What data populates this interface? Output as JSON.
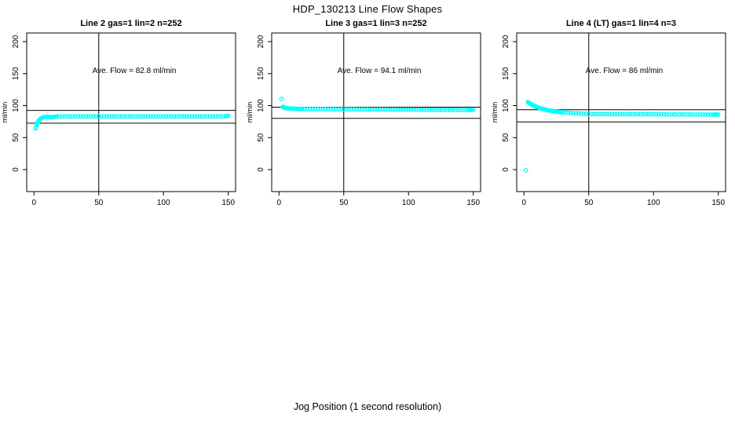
{
  "figure": {
    "title": "HDP_130213  Line Flow Shapes",
    "xlabel": "Jog Position (1 second resolution)",
    "background": "#ffffff",
    "axis_color": "#000000",
    "marker_color": "#00FFFF"
  },
  "chart_data": [
    {
      "type": "scatter",
      "title": "Line 2 gas=1 lin=2 n=252",
      "annotation": "Ave. Flow =  82.8  ml/min",
      "ave_flow_ml_min": 82.8,
      "n": 252,
      "ylabel": "ml/min",
      "xticks": [
        "0",
        "50",
        "100",
        "150"
      ],
      "yticks": [
        "0",
        "50",
        "100",
        "150",
        "200"
      ],
      "xlim": [
        0,
        155
      ],
      "ylim": [
        0,
        200
      ],
      "grid": false,
      "vline_x": 50,
      "hlines": [
        92.5,
        72.5
      ],
      "points": [
        [
          1.3,
          64.5
        ],
        [
          1.7,
          66
        ],
        [
          2,
          69.5
        ],
        [
          2.3,
          71
        ],
        [
          2.6,
          72.5
        ],
        [
          3,
          74
        ],
        [
          3.4,
          75.5
        ],
        [
          3.8,
          76.8
        ],
        [
          4.2,
          77.8
        ],
        [
          4.6,
          78.6
        ],
        [
          5,
          79.3
        ],
        [
          5.5,
          80
        ],
        [
          6,
          80.6
        ],
        [
          6.5,
          81
        ],
        [
          7,
          81.4
        ],
        [
          7.5,
          81.7
        ],
        [
          8,
          82
        ],
        [
          9,
          82.3
        ],
        [
          10,
          82.5
        ],
        [
          11,
          82.5
        ],
        [
          12,
          82.3
        ],
        [
          13,
          81.7
        ],
        [
          14,
          82
        ],
        [
          15,
          82.4
        ],
        [
          16,
          82.7
        ],
        [
          17,
          82.9
        ],
        [
          18,
          83
        ],
        [
          20,
          83.2
        ],
        [
          22,
          83
        ],
        [
          24,
          83.3
        ],
        [
          26,
          83.1
        ],
        [
          28,
          83
        ],
        [
          30,
          83.2
        ],
        [
          32,
          83.1
        ],
        [
          34,
          83.3
        ],
        [
          36,
          83
        ],
        [
          38,
          83.2
        ],
        [
          40,
          83.1
        ],
        [
          42,
          83
        ],
        [
          44,
          83.2
        ],
        [
          46,
          83.3
        ],
        [
          48,
          83.1
        ],
        [
          50,
          83
        ],
        [
          52,
          83.2
        ],
        [
          54,
          83.1
        ],
        [
          56,
          83.3
        ],
        [
          58,
          83
        ],
        [
          60,
          83.2
        ],
        [
          62,
          83.1
        ],
        [
          64,
          83
        ],
        [
          66,
          83.2
        ],
        [
          68,
          83.3
        ],
        [
          70,
          83.1
        ],
        [
          72,
          83
        ],
        [
          74,
          83.2
        ],
        [
          76,
          83.1
        ],
        [
          78,
          83.3
        ],
        [
          80,
          83
        ],
        [
          82,
          83.2
        ],
        [
          84,
          83.1
        ],
        [
          86,
          83
        ],
        [
          88,
          83.2
        ],
        [
          90,
          83.3
        ],
        [
          92,
          83.1
        ],
        [
          94,
          83
        ],
        [
          96,
          83.2
        ],
        [
          98,
          83.1
        ],
        [
          100,
          83.3
        ],
        [
          102,
          83
        ],
        [
          104,
          83.2
        ],
        [
          106,
          83.1
        ],
        [
          108,
          83
        ],
        [
          110,
          83.2
        ],
        [
          112,
          83.3
        ],
        [
          114,
          83.1
        ],
        [
          116,
          83
        ],
        [
          118,
          83.2
        ],
        [
          120,
          83.1
        ],
        [
          122,
          83.3
        ],
        [
          124,
          83
        ],
        [
          126,
          83.2
        ],
        [
          128,
          83.1
        ],
        [
          130,
          83
        ],
        [
          132,
          83.2
        ],
        [
          134,
          83.3
        ],
        [
          136,
          83.1
        ],
        [
          138,
          83
        ],
        [
          140,
          83.2
        ],
        [
          142,
          83.1
        ],
        [
          144,
          83.3
        ],
        [
          146,
          83.2
        ],
        [
          148,
          83.5
        ],
        [
          149,
          83.9
        ],
        [
          150,
          84.3
        ]
      ]
    },
    {
      "type": "scatter",
      "title": "Line 3 gas=1 lin=3 n=252",
      "annotation": "Ave. Flow =  94.1  ml/min",
      "ave_flow_ml_min": 94.1,
      "n": 252,
      "ylabel": "ml/min",
      "xticks": [
        "0",
        "50",
        "100",
        "150"
      ],
      "yticks": [
        "0",
        "50",
        "100",
        "150",
        "200"
      ],
      "xlim": [
        0,
        155
      ],
      "ylim": [
        0,
        200
      ],
      "grid": false,
      "vline_x": 50,
      "hlines": [
        97.5,
        80
      ],
      "points": [
        [
          2,
          110.5
        ],
        [
          3,
          98.2
        ],
        [
          3.4,
          97.6
        ],
        [
          3.8,
          97.2
        ],
        [
          4.2,
          96.8
        ],
        [
          4.6,
          96.5
        ],
        [
          5,
          96.3
        ],
        [
          5.5,
          96.1
        ],
        [
          6,
          95.9
        ],
        [
          6.5,
          95.8
        ],
        [
          7,
          95.7
        ],
        [
          8,
          95.5
        ],
        [
          9,
          95.4
        ],
        [
          10,
          95.3
        ],
        [
          11,
          95.2
        ],
        [
          12,
          95.1
        ],
        [
          13,
          95
        ],
        [
          14,
          95
        ],
        [
          15,
          94.9
        ],
        [
          16,
          94.9
        ],
        [
          17,
          94.8
        ],
        [
          18,
          94.8
        ],
        [
          20,
          94.8
        ],
        [
          22,
          94.7
        ],
        [
          24,
          94.7
        ],
        [
          26,
          94.7
        ],
        [
          28,
          94.7
        ],
        [
          30,
          94.6
        ],
        [
          32,
          94.6
        ],
        [
          34,
          94.6
        ],
        [
          36,
          94.6
        ],
        [
          38,
          94.5
        ],
        [
          40,
          94.5
        ],
        [
          42,
          94.5
        ],
        [
          44,
          94.5
        ],
        [
          46,
          94.4
        ],
        [
          48,
          94.4
        ],
        [
          50,
          94.4
        ],
        [
          52,
          94.4
        ],
        [
          54,
          94.3
        ],
        [
          56,
          94.3
        ],
        [
          58,
          94.3
        ],
        [
          60,
          94.3
        ],
        [
          62,
          94.2
        ],
        [
          64,
          94.2
        ],
        [
          66,
          94.2
        ],
        [
          68,
          94.2
        ],
        [
          70,
          94.1
        ],
        [
          72,
          94.1
        ],
        [
          74,
          94.1
        ],
        [
          76,
          94.1
        ],
        [
          78,
          94
        ],
        [
          80,
          94
        ],
        [
          82,
          94
        ],
        [
          84,
          94
        ],
        [
          86,
          93.9
        ],
        [
          88,
          93.9
        ],
        [
          90,
          93.9
        ],
        [
          92,
          93.9
        ],
        [
          94,
          93.8
        ],
        [
          96,
          93.8
        ],
        [
          98,
          93.8
        ],
        [
          100,
          93.8
        ],
        [
          102,
          93.7
        ],
        [
          104,
          93.7
        ],
        [
          106,
          93.7
        ],
        [
          108,
          93.7
        ],
        [
          110,
          93.6
        ],
        [
          112,
          93.6
        ],
        [
          114,
          93.6
        ],
        [
          116,
          93.6
        ],
        [
          118,
          93.5
        ],
        [
          120,
          93.5
        ],
        [
          122,
          93.5
        ],
        [
          124,
          93.5
        ],
        [
          126,
          93.4
        ],
        [
          128,
          93.4
        ],
        [
          130,
          93.4
        ],
        [
          132,
          93.4
        ],
        [
          134,
          93.3
        ],
        [
          136,
          93.3
        ],
        [
          138,
          93.3
        ],
        [
          140,
          93.3
        ],
        [
          142,
          93.2
        ],
        [
          144,
          93.2
        ],
        [
          146,
          92.9
        ],
        [
          147,
          93.7
        ],
        [
          148,
          93.1
        ],
        [
          149,
          93.9
        ],
        [
          150,
          93.3
        ]
      ]
    },
    {
      "type": "scatter",
      "title": "Line 4 (LT) gas=1 lin=4 n=3",
      "annotation": "Ave. Flow =  86  ml/min",
      "ave_flow_ml_min": 86,
      "n": 3,
      "ylabel": "ml/min",
      "xticks": [
        "0",
        "50",
        "100",
        "150"
      ],
      "yticks": [
        "0",
        "50",
        "100",
        "150",
        "200"
      ],
      "xlim": [
        0,
        155
      ],
      "ylim": [
        0,
        200
      ],
      "grid": false,
      "vline_x": 50,
      "hlines": [
        93.5,
        74.5
      ],
      "points": [
        [
          1.5,
          -1
        ],
        [
          3,
          105.5
        ],
        [
          3.5,
          104.8
        ],
        [
          4,
          104.1
        ],
        [
          4.5,
          103.4
        ],
        [
          5,
          102.8
        ],
        [
          5.5,
          102.2
        ],
        [
          6,
          101.6
        ],
        [
          6.5,
          101
        ],
        [
          7,
          100.5
        ],
        [
          7.5,
          100
        ],
        [
          8,
          99.5
        ],
        [
          8.5,
          99
        ],
        [
          9,
          98.6
        ],
        [
          9.5,
          98.1
        ],
        [
          10,
          97.7
        ],
        [
          11,
          97
        ],
        [
          12,
          96.3
        ],
        [
          13,
          95.6
        ],
        [
          14,
          95
        ],
        [
          15,
          94.5
        ],
        [
          16,
          94
        ],
        [
          17,
          93.5
        ],
        [
          18,
          93.1
        ],
        [
          19,
          92.7
        ],
        [
          20,
          92.3
        ],
        [
          21,
          91.9
        ],
        [
          22,
          91.6
        ],
        [
          23,
          91.3
        ],
        [
          24,
          91
        ],
        [
          25,
          90.7
        ],
        [
          26,
          90.4
        ],
        [
          27,
          90.2
        ],
        [
          28,
          89.9
        ],
        [
          29,
          89.7
        ],
        [
          30,
          89.5
        ],
        [
          32,
          89.1
        ],
        [
          34,
          88.8
        ],
        [
          36,
          88.5
        ],
        [
          38,
          88.2
        ],
        [
          40,
          87.9
        ],
        [
          42,
          87.7
        ],
        [
          44,
          87.5
        ],
        [
          46,
          87.3
        ],
        [
          48,
          87.2
        ],
        [
          50,
          87
        ],
        [
          52,
          86.9
        ],
        [
          54,
          86.9
        ],
        [
          56,
          86.8
        ],
        [
          58,
          86.8
        ],
        [
          60,
          86.8
        ],
        [
          62,
          86.8
        ],
        [
          64,
          86.8
        ],
        [
          66,
          86.7
        ],
        [
          68,
          86.7
        ],
        [
          70,
          86.7
        ],
        [
          72,
          86.7
        ],
        [
          74,
          86.7
        ],
        [
          76,
          86.7
        ],
        [
          78,
          86.6
        ],
        [
          80,
          86.6
        ],
        [
          82,
          86.6
        ],
        [
          84,
          86.6
        ],
        [
          86,
          86.6
        ],
        [
          88,
          86.6
        ],
        [
          90,
          86.5
        ],
        [
          92,
          86.5
        ],
        [
          94,
          86.5
        ],
        [
          96,
          86.5
        ],
        [
          98,
          86.5
        ],
        [
          100,
          86.4
        ],
        [
          102,
          86.4
        ],
        [
          104,
          86.4
        ],
        [
          106,
          86.4
        ],
        [
          108,
          86.4
        ],
        [
          110,
          86.3
        ],
        [
          112,
          86.3
        ],
        [
          114,
          86.3
        ],
        [
          116,
          86.3
        ],
        [
          118,
          86.3
        ],
        [
          120,
          86.2
        ],
        [
          122,
          86.2
        ],
        [
          124,
          86.2
        ],
        [
          126,
          86.2
        ],
        [
          128,
          86.2
        ],
        [
          130,
          86.1
        ],
        [
          132,
          86.1
        ],
        [
          134,
          86.1
        ],
        [
          136,
          86.1
        ],
        [
          138,
          86.1
        ],
        [
          140,
          86
        ],
        [
          142,
          86
        ],
        [
          144,
          86
        ],
        [
          146,
          86
        ],
        [
          147,
          85.6
        ],
        [
          148,
          86.4
        ],
        [
          149,
          85.9
        ],
        [
          150,
          86.1
        ]
      ]
    }
  ]
}
